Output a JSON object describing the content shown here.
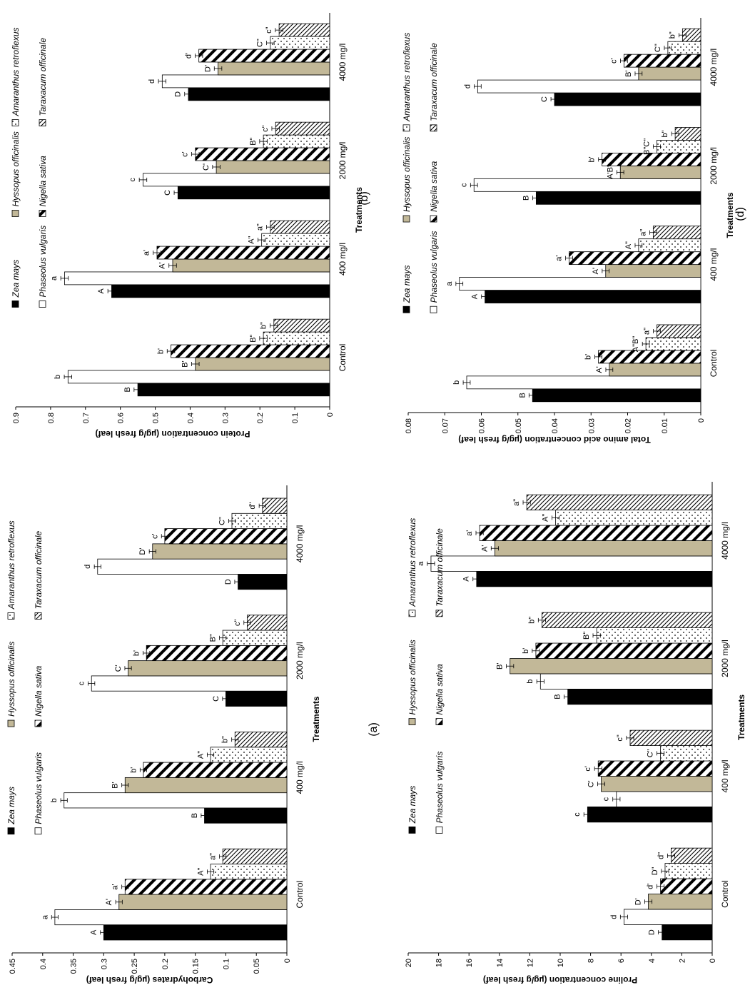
{
  "figure": {
    "palette": {
      "zea": "#000000",
      "phaseolus": "#ffffff",
      "hyssopus": "#c2b898",
      "nigella": "stripe-bold",
      "amaranthus": "dots",
      "taraxacum": "stripe-fine"
    },
    "legend_labels": [
      "Zea mays",
      "Phaseolus vulgaris",
      "Hyssopus officinalis",
      "Nigella sativa",
      "Amaranthus retroflexus",
      "Taraxacum officinale"
    ]
  },
  "chart_data": [
    {
      "id": "b",
      "panel_label": "(b)",
      "type": "bar",
      "orientation": "rotated",
      "ylabel": "Protein concentration (µg/g fresh leaf)",
      "xlabel": "Treatments",
      "ylim": [
        0,
        0.9
      ],
      "yticks": [
        "0",
        "0.1",
        "0.2",
        "0.3",
        "0.4",
        "0.5",
        "0.6",
        "0.7",
        "0.8",
        "0.9"
      ],
      "categories": [
        "Control",
        "400 mg/l",
        "2000 mg/l",
        "4000 mg/l"
      ],
      "legend_position": "top",
      "series": [
        {
          "name": "Zea mays",
          "values": [
            0.55,
            0.625,
            0.435,
            0.405
          ],
          "labels": [
            "B",
            "A",
            "C",
            "D"
          ]
        },
        {
          "name": "Phaseolus vulgaris",
          "values": [
            0.75,
            0.76,
            0.535,
            0.48
          ],
          "labels": [
            "b",
            "a",
            "c",
            "d"
          ]
        },
        {
          "name": "Hyssopus officinalis",
          "values": [
            0.385,
            0.45,
            0.325,
            0.32
          ],
          "labels": [
            "B'",
            "A'",
            "C'",
            "D'"
          ]
        },
        {
          "name": "Nigella sativa",
          "values": [
            0.455,
            0.495,
            0.385,
            0.375
          ],
          "labels": [
            "b'",
            "a'",
            "c'",
            "d'"
          ]
        },
        {
          "name": "Amaranthus retroflexus",
          "values": [
            0.19,
            0.195,
            0.19,
            0.17
          ],
          "labels": [
            "B\"",
            "A\"",
            "B\"",
            "C\""
          ]
        },
        {
          "name": "Taraxacum officinale",
          "values": [
            0.16,
            0.17,
            0.155,
            0.145
          ],
          "labels": [
            "b\"",
            "a\"",
            "c\"",
            "c\""
          ]
        }
      ]
    },
    {
      "id": "a",
      "panel_label": "(a)",
      "type": "bar",
      "orientation": "rotated",
      "ylabel": "Carbohydrates (µg/g fresh leaf)",
      "xlabel": "Treatments",
      "ylim": [
        0,
        0.45
      ],
      "yticks": [
        "0",
        "0.05",
        "0.1",
        "0.15",
        "0.2",
        "0.25",
        "0.3",
        "0.35",
        "0.4",
        "0.45"
      ],
      "categories": [
        "Control",
        "400 mg/l",
        "2000 mg/l",
        "4000 mg/l"
      ],
      "legend_position": "top",
      "series": [
        {
          "name": "Zea mays",
          "values": [
            0.3,
            0.135,
            0.1,
            0.08
          ],
          "labels": [
            "A",
            "B",
            "C",
            "D"
          ]
        },
        {
          "name": "Phaseolus vulgaris",
          "values": [
            0.38,
            0.365,
            0.32,
            0.31
          ],
          "labels": [
            "a",
            "b",
            "c",
            "d"
          ]
        },
        {
          "name": "Hyssopus officinalis",
          "values": [
            0.275,
            0.265,
            0.26,
            0.22
          ],
          "labels": [
            "A'",
            "B'",
            "C'",
            "D'"
          ]
        },
        {
          "name": "Nigella sativa",
          "values": [
            0.265,
            0.235,
            0.23,
            0.2
          ],
          "labels": [
            "a'",
            "b'",
            "b'",
            "c'"
          ]
        },
        {
          "name": "Amaranthus retroflexus",
          "values": [
            0.125,
            0.125,
            0.105,
            0.09
          ],
          "labels": [
            "A\"",
            "A\"",
            "B\"",
            "C\""
          ]
        },
        {
          "name": "Taraxacum officinale",
          "values": [
            0.105,
            0.085,
            0.065,
            0.04
          ],
          "labels": [
            "a\"",
            "b\"",
            "c\"",
            "d\""
          ]
        }
      ]
    },
    {
      "id": "d",
      "panel_label": "(d)",
      "type": "bar",
      "orientation": "rotated",
      "ylabel": "Total amino acid concentration (µg/g fresh leaf)",
      "xlabel": "Treatments",
      "ylim": [
        0,
        0.08
      ],
      "yticks": [
        "0",
        "0.01",
        "0.02",
        "0.03",
        "0.04",
        "0.05",
        "0.06",
        "0.07",
        "0.08"
      ],
      "categories": [
        "Control",
        "400 mg/l",
        "2000 mg/l",
        "4000 mg/l"
      ],
      "legend_position": "top",
      "series": [
        {
          "name": "Zea mays",
          "values": [
            0.046,
            0.059,
            0.045,
            0.04
          ],
          "labels": [
            "B",
            "A",
            "B",
            "C"
          ]
        },
        {
          "name": "Phaseolus vulgaris",
          "values": [
            0.064,
            0.066,
            0.062,
            0.061
          ],
          "labels": [
            "b",
            "a",
            "c",
            "d"
          ]
        },
        {
          "name": "Hyssopus officinalis",
          "values": [
            0.025,
            0.026,
            0.022,
            0.017
          ],
          "labels": [
            "A'",
            "A'",
            "A'B'",
            "B'"
          ]
        },
        {
          "name": "Nigella sativa",
          "values": [
            0.028,
            0.036,
            0.027,
            0.021
          ],
          "labels": [
            "b'",
            "a'",
            "b'",
            "c'"
          ]
        },
        {
          "name": "Amaranthus retroflexus",
          "values": [
            0.015,
            0.017,
            0.012,
            0.009
          ],
          "labels": [
            "A\"B\"",
            "A\"",
            "B\"C\"",
            "C\""
          ]
        },
        {
          "name": "Taraxacum officinale",
          "values": [
            0.012,
            0.013,
            0.007,
            0.005
          ],
          "labels": [
            "a\"",
            "a\"",
            "b\"",
            "b\""
          ]
        }
      ]
    },
    {
      "id": "c",
      "panel_label": "",
      "type": "bar",
      "orientation": "rotated",
      "ylabel": "Proline concentration (µg/g fresh leaf)",
      "xlabel": "Treatments",
      "ylim": [
        0,
        20
      ],
      "yticks": [
        "0",
        "2",
        "4",
        "6",
        "8",
        "10",
        "12",
        "14",
        "16",
        "18",
        "20"
      ],
      "categories": [
        "Control",
        "400 mg/l",
        "2000 mg/l",
        "4000 mg/l"
      ],
      "legend_position": "top",
      "series": [
        {
          "name": "Zea mays",
          "values": [
            3.3,
            8.2,
            9.5,
            15.5
          ],
          "labels": [
            "D",
            "c",
            "B",
            "A"
          ]
        },
        {
          "name": "Phaseolus vulgaris",
          "values": [
            5.8,
            6.3,
            11.3,
            18.5
          ],
          "labels": [
            "d",
            "c",
            "b",
            "a"
          ]
        },
        {
          "name": "Hyssopus officinalis",
          "values": [
            4.2,
            7.3,
            13.3,
            14.3
          ],
          "labels": [
            "D'",
            "C'",
            "B'",
            "A'"
          ]
        },
        {
          "name": "Nigella sativa",
          "values": [
            3.4,
            7.5,
            11.6,
            15.3
          ],
          "labels": [
            "d'",
            "c'",
            "b'",
            "a'"
          ]
        },
        {
          "name": "Amaranthus retroflexus",
          "values": [
            3.1,
            3.4,
            7.6,
            10.3
          ],
          "labels": [
            "D\"",
            "C\"",
            "B\"",
            "A\""
          ]
        },
        {
          "name": "Taraxacum officinale",
          "values": [
            2.7,
            5.4,
            11.2,
            12.2
          ],
          "labels": [
            "d\"",
            "c\"",
            "b\"",
            "a\""
          ]
        }
      ]
    }
  ]
}
